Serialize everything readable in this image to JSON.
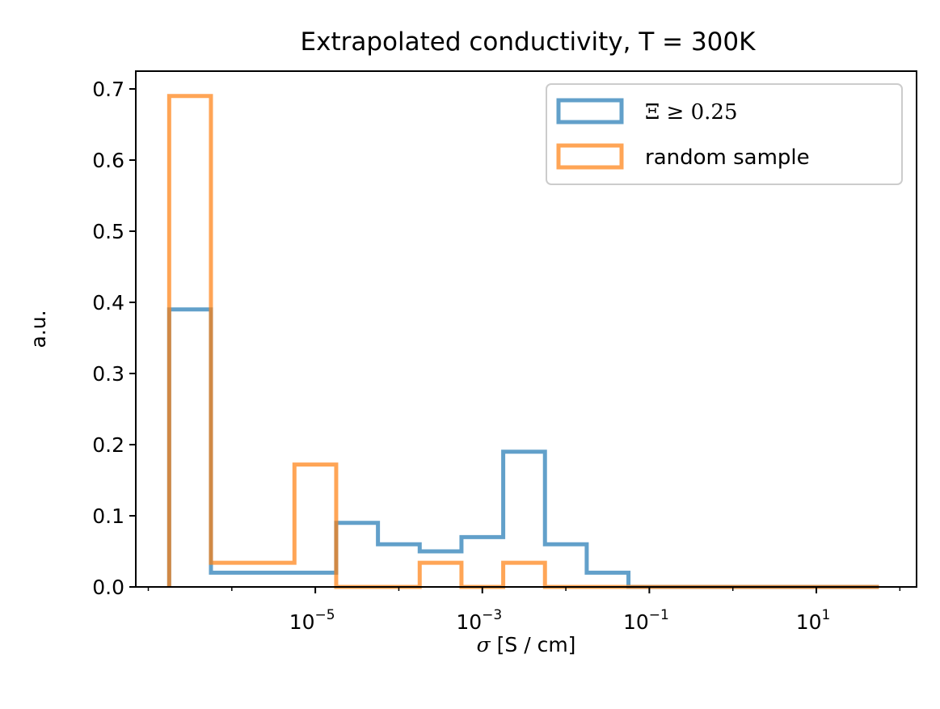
{
  "chart_data": {
    "type": "histogram-step",
    "title": "Extrapolated conductivity, T = 300K",
    "xlabel_symbol": "σ",
    "xlabel_unit": "[S / cm]",
    "ylabel": "a.u.",
    "xscale": "log",
    "xlim_log10": [
      -7.15,
      2.2
    ],
    "ylim": [
      0,
      0.725
    ],
    "yticks": [
      "0.0",
      "0.1",
      "0.2",
      "0.3",
      "0.4",
      "0.5",
      "0.6",
      "0.7"
    ],
    "xticks": [
      {
        "log10": -5,
        "base": "10",
        "exp": "−5"
      },
      {
        "log10": -3,
        "base": "10",
        "exp": "−3"
      },
      {
        "log10": -1,
        "base": "10",
        "exp": "−1"
      },
      {
        "log10": 1,
        "base": "10",
        "exp": "1"
      }
    ],
    "bin_edges_log10": [
      -6.75,
      -6.25,
      -5.75,
      -5.25,
      -4.75,
      -4.25,
      -3.75,
      -3.25,
      -2.75,
      -2.25,
      -1.75,
      -1.25,
      -0.75,
      -0.25,
      0.25,
      0.75,
      1.25,
      1.75
    ],
    "series": [
      {
        "name": "Ξ ≥ 0.25",
        "color": "#1f77b4",
        "values": [
          0.39,
          0.02,
          0.02,
          0.02,
          0.09,
          0.06,
          0.05,
          0.07,
          0.19,
          0.06,
          0.02,
          0.0,
          0.0,
          0.0,
          0.0,
          0.0,
          0.0
        ]
      },
      {
        "name": "random sample",
        "color": "#ff7f0e",
        "values": [
          0.69,
          0.034,
          0.034,
          0.172,
          0.0,
          0.0,
          0.034,
          0.0,
          0.034,
          0.0,
          0.0,
          0.0,
          0.0,
          0.0,
          0.0,
          0.0,
          0.0
        ]
      }
    ],
    "legend_position": "top-right"
  }
}
